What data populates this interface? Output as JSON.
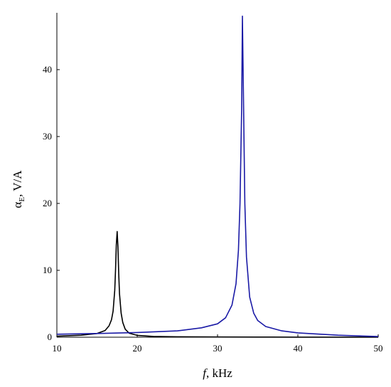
{
  "chart_data": {
    "type": "line",
    "title": "",
    "xlabel": {
      "italic": "f",
      "rest": ", kHz"
    },
    "ylabel": {
      "symbol": "α",
      "subscript": "E",
      "rest": ", V/A"
    },
    "xlim": [
      10,
      50
    ],
    "ylim": [
      0,
      48.5
    ],
    "xticks": [
      10,
      20,
      30,
      40,
      50
    ],
    "yticks": [
      0,
      10,
      20,
      30,
      40
    ],
    "grid": false,
    "legend": "none",
    "series": [
      {
        "color": "#000000",
        "x": [
          10,
          13,
          15,
          16,
          16.5,
          16.8,
          17.0,
          17.2,
          17.3,
          17.4,
          17.5,
          17.6,
          17.7,
          17.8,
          18.0,
          18.2,
          18.5,
          19,
          20,
          22,
          25,
          30,
          35,
          40,
          50
        ],
        "y": [
          0.15,
          0.3,
          0.55,
          1.0,
          1.7,
          2.6,
          3.9,
          7.0,
          10.0,
          13.8,
          15.8,
          13.5,
          9.5,
          6.5,
          3.6,
          2.2,
          1.2,
          0.6,
          0.28,
          0.12,
          0.06,
          0.03,
          0.02,
          0.015,
          0.01
        ]
      },
      {
        "color": "#1a1aa6",
        "x": [
          10,
          15,
          20,
          25,
          28,
          30,
          31,
          31.8,
          32.3,
          32.6,
          32.8,
          33.0,
          33.1,
          33.2,
          33.4,
          33.6,
          34.0,
          34.5,
          35,
          36,
          38,
          40,
          45,
          50
        ],
        "y": [
          0.45,
          0.55,
          0.7,
          0.95,
          1.4,
          2.0,
          2.9,
          4.8,
          8.0,
          13.0,
          20.0,
          34.0,
          48.0,
          38.0,
          20.0,
          12.0,
          6.0,
          3.6,
          2.5,
          1.6,
          0.95,
          0.65,
          0.3,
          0.1
        ]
      }
    ]
  }
}
